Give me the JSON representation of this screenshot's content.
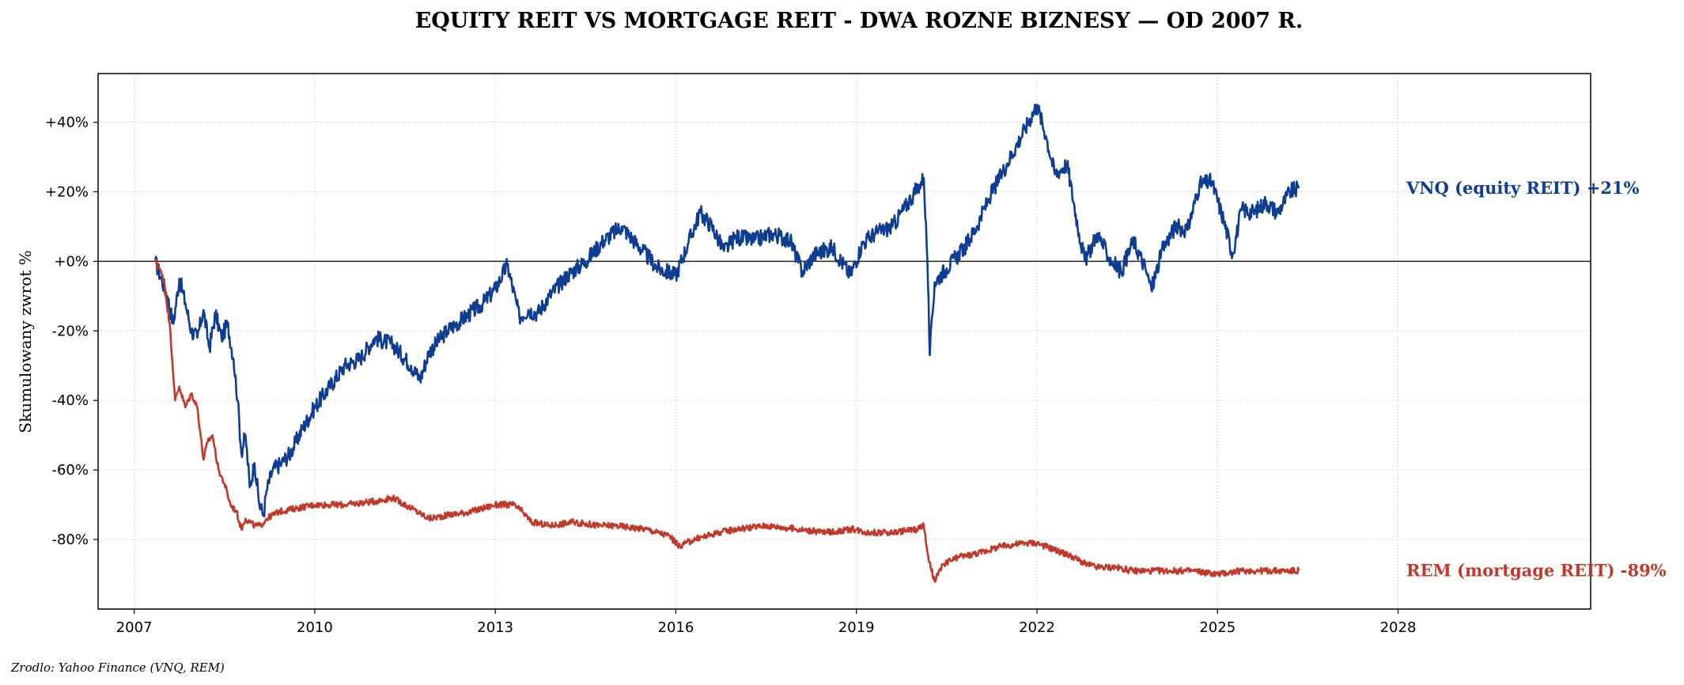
{
  "chart_data": {
    "type": "line",
    "title": "EQUITY REIT VS MORTGAGE REIT - DWA ROZNE BIZNESY — OD 2007 R.",
    "xlabel": "",
    "ylabel": "Skumulowany zwrot %",
    "xlim": [
      2006.4,
      2031.2
    ],
    "ylim": [
      -100,
      54
    ],
    "xticks": [
      2007,
      2010,
      2013,
      2016,
      2019,
      2022,
      2025,
      2028
    ],
    "yticks": [
      40,
      20,
      0,
      -20,
      -40,
      -60,
      -80
    ],
    "ytick_labels": [
      "+40%",
      "+20%",
      "+0%",
      "-20%",
      "-40%",
      "-60%",
      "-80%"
    ],
    "grid": true,
    "zero_line": true,
    "source_note": "Zrodlo: Yahoo Finance (VNQ, REM)",
    "series": [
      {
        "name": "VNQ (equity REIT)",
        "end_label": "VNQ (equity REIT)  +21%",
        "color": "#0f3d91",
        "x": [
          2007.35,
          2007.45,
          2007.55,
          2007.65,
          2007.75,
          2007.85,
          2007.95,
          2008.05,
          2008.15,
          2008.25,
          2008.35,
          2008.45,
          2008.55,
          2008.65,
          2008.72,
          2008.78,
          2008.85,
          2008.92,
          2009.0,
          2009.08,
          2009.15,
          2009.2,
          2009.3,
          2009.45,
          2009.6,
          2009.8,
          2010.0,
          2010.25,
          2010.5,
          2010.75,
          2011.0,
          2011.3,
          2011.6,
          2011.75,
          2011.9,
          2012.2,
          2012.5,
          2012.8,
          2013.0,
          2013.2,
          2013.4,
          2013.55,
          2013.7,
          2013.9,
          2014.2,
          2014.5,
          2014.8,
          2015.1,
          2015.4,
          2015.7,
          2016.0,
          2016.2,
          2016.4,
          2016.6,
          2016.8,
          2017.0,
          2017.3,
          2017.6,
          2017.9,
          2018.1,
          2018.3,
          2018.6,
          2018.9,
          2019.1,
          2019.3,
          2019.6,
          2019.9,
          2020.05,
          2020.12,
          2020.18,
          2020.22,
          2020.3,
          2020.5,
          2020.8,
          2021.0,
          2021.2,
          2021.5,
          2021.8,
          2022.0,
          2022.15,
          2022.3,
          2022.5,
          2022.7,
          2022.8,
          2023.0,
          2023.2,
          2023.4,
          2023.6,
          2023.8,
          2023.9,
          2024.1,
          2024.3,
          2024.5,
          2024.7,
          2024.9,
          2025.1,
          2025.25,
          2025.4,
          2025.6,
          2025.8,
          2026.0,
          2026.2,
          2026.35
        ],
        "y": [
          0,
          -5,
          -10,
          -18,
          -5,
          -12,
          -20,
          -22,
          -14,
          -25,
          -15,
          -22,
          -18,
          -28,
          -40,
          -55,
          -50,
          -65,
          -58,
          -70,
          -73,
          -66,
          -60,
          -58,
          -55,
          -48,
          -42,
          -36,
          -30,
          -28,
          -22,
          -24,
          -30,
          -34,
          -26,
          -20,
          -16,
          -12,
          -8,
          -1,
          -16,
          -14,
          -15,
          -10,
          -4,
          0,
          6,
          10,
          4,
          -2,
          -4,
          5,
          14,
          10,
          3,
          7,
          6,
          8,
          6,
          -3,
          2,
          4,
          -4,
          5,
          8,
          10,
          18,
          22,
          24,
          0,
          -27,
          -6,
          -2,
          4,
          10,
          18,
          28,
          38,
          45,
          36,
          25,
          28,
          8,
          0,
          8,
          1,
          -3,
          6,
          -2,
          -8,
          4,
          10,
          9,
          22,
          23,
          12,
          2,
          15,
          14,
          17,
          14,
          20,
          21
        ]
      },
      {
        "name": "REM (mortgage REIT)",
        "end_label": "REM (mortgage REIT)  -89%",
        "color": "#c0392b",
        "x": [
          2007.35,
          2007.42,
          2007.5,
          2007.6,
          2007.68,
          2007.75,
          2007.85,
          2007.95,
          2008.05,
          2008.15,
          2008.22,
          2008.3,
          2008.4,
          2008.5,
          2008.6,
          2008.7,
          2008.78,
          2008.85,
          2009.0,
          2009.1,
          2009.2,
          2009.4,
          2009.7,
          2010.0,
          2010.5,
          2011.0,
          2011.3,
          2011.6,
          2011.9,
          2012.2,
          2012.6,
          2013.0,
          2013.3,
          2013.45,
          2013.6,
          2013.9,
          2014.3,
          2014.7,
          2015.0,
          2015.5,
          2015.9,
          2016.05,
          2016.3,
          2016.7,
          2017.0,
          2017.5,
          2018.0,
          2018.5,
          2018.95,
          2019.2,
          2019.6,
          2020.0,
          2020.12,
          2020.2,
          2020.3,
          2020.45,
          2020.7,
          2021.0,
          2021.4,
          2021.8,
          2022.0,
          2022.3,
          2022.6,
          2022.8,
          2023.0,
          2023.3,
          2023.6,
          2023.9,
          2024.2,
          2024.6,
          2025.0,
          2025.4,
          2025.8,
          2026.1,
          2026.35
        ],
        "y": [
          0,
          -2,
          -6,
          -20,
          -40,
          -36,
          -42,
          -38,
          -42,
          -57,
          -52,
          -50,
          -60,
          -64,
          -70,
          -72,
          -77,
          -74,
          -76,
          -76,
          -74,
          -72,
          -71,
          -70,
          -70,
          -69,
          -68,
          -71,
          -74,
          -73,
          -72,
          -70,
          -70,
          -72,
          -75,
          -76,
          -75,
          -76,
          -76,
          -77,
          -79,
          -82,
          -80,
          -78,
          -77,
          -76,
          -77,
          -78,
          -77,
          -78,
          -78,
          -77,
          -76,
          -86,
          -92,
          -87,
          -85,
          -84,
          -82,
          -81,
          -81,
          -83,
          -85,
          -87,
          -88,
          -88,
          -89,
          -89,
          -89,
          -89,
          -90,
          -89,
          -89,
          -89,
          -89
        ]
      }
    ]
  }
}
